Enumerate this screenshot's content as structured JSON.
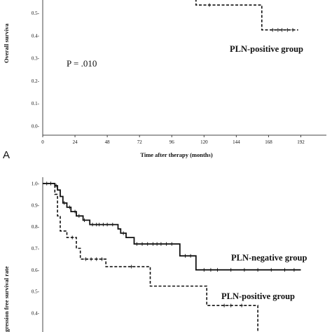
{
  "chart_data": [
    {
      "type": "line",
      "panel_label": "A",
      "ylabel": "Overall surviva",
      "xlabel": "Time after therapy (months)",
      "p_value_text": "P = .010",
      "xlim": [
        0,
        192
      ],
      "ylim": [
        0,
        0.6
      ],
      "x_ticks": [
        0,
        24,
        48,
        72,
        96,
        120,
        144,
        168,
        192
      ],
      "y_ticks": [
        "0.0-",
        "0.1-",
        "0.2-",
        "0.3-",
        "0.4-",
        "0.5-"
      ],
      "y_tick_values": [
        0.0,
        0.1,
        0.2,
        0.3,
        0.4,
        0.5
      ],
      "series": [
        {
          "name": "PLN-positive group",
          "style": "dashed",
          "steps": [
            [
              100,
              0.64
            ],
            [
              114,
              0.64
            ],
            [
              114,
              0.535
            ],
            [
              163,
              0.535
            ],
            [
              163,
              0.425
            ],
            [
              190,
              0.425
            ]
          ],
          "censor": [
            [
              124,
              0.535
            ],
            [
              171,
              0.425
            ],
            [
              175,
              0.425
            ],
            [
              178,
              0.425
            ],
            [
              182,
              0.425
            ],
            [
              186,
              0.425
            ]
          ]
        }
      ]
    },
    {
      "type": "line",
      "ylabel": "gression free survival rate",
      "ylim": [
        0.3,
        1.0
      ],
      "xlim": [
        0,
        192
      ],
      "y_ticks": [
        "1.0-",
        "0.9-",
        "0.8-",
        "0.7-",
        "0.6-",
        "0.5-",
        "0.4-"
      ],
      "y_tick_values": [
        1.0,
        0.9,
        0.8,
        0.7,
        0.6,
        0.5,
        0.4
      ],
      "series": [
        {
          "name": "PLN-negative group",
          "style": "solid",
          "steps": [
            [
              0,
              1.0
            ],
            [
              9,
              1.0
            ],
            [
              9,
              0.99
            ],
            [
              11,
              0.99
            ],
            [
              11,
              0.97
            ],
            [
              13,
              0.97
            ],
            [
              13,
              0.94
            ],
            [
              15,
              0.94
            ],
            [
              15,
              0.91
            ],
            [
              18,
              0.91
            ],
            [
              18,
              0.89
            ],
            [
              21,
              0.89
            ],
            [
              21,
              0.87
            ],
            [
              25,
              0.87
            ],
            [
              25,
              0.85
            ],
            [
              30,
              0.85
            ],
            [
              30,
              0.83
            ],
            [
              35,
              0.83
            ],
            [
              35,
              0.81
            ],
            [
              56,
              0.81
            ],
            [
              56,
              0.79
            ],
            [
              58,
              0.79
            ],
            [
              58,
              0.77
            ],
            [
              62,
              0.77
            ],
            [
              62,
              0.75
            ],
            [
              68,
              0.75
            ],
            [
              68,
              0.72
            ],
            [
              102,
              0.72
            ],
            [
              102,
              0.665
            ],
            [
              114,
              0.665
            ],
            [
              114,
              0.6
            ],
            [
              192,
              0.6
            ]
          ],
          "censor": [
            [
              3,
              1.0
            ],
            [
              6,
              1.0
            ],
            [
              10,
              0.99
            ],
            [
              16,
              0.91
            ],
            [
              20,
              0.89
            ],
            [
              24,
              0.87
            ],
            [
              27,
              0.85
            ],
            [
              31,
              0.83
            ],
            [
              37,
              0.81
            ],
            [
              40,
              0.81
            ],
            [
              42,
              0.81
            ],
            [
              45,
              0.81
            ],
            [
              48,
              0.81
            ],
            [
              52,
              0.81
            ],
            [
              60,
              0.77
            ],
            [
              70,
              0.72
            ],
            [
              74,
              0.72
            ],
            [
              78,
              0.72
            ],
            [
              82,
              0.72
            ],
            [
              85,
              0.72
            ],
            [
              88,
              0.72
            ],
            [
              92,
              0.72
            ],
            [
              96,
              0.72
            ],
            [
              106,
              0.665
            ],
            [
              110,
              0.665
            ],
            [
              120,
              0.6
            ],
            [
              125,
              0.6
            ],
            [
              130,
              0.6
            ],
            [
              140,
              0.6
            ],
            [
              150,
              0.6
            ],
            [
              160,
              0.6
            ],
            [
              170,
              0.6
            ],
            [
              180,
              0.6
            ],
            [
              187,
              0.6
            ]
          ]
        },
        {
          "name": "PLN-positive group",
          "style": "dashed",
          "steps": [
            [
              0,
              1.0
            ],
            [
              9,
              1.0
            ],
            [
              9,
              0.95
            ],
            [
              11,
              0.95
            ],
            [
              11,
              0.85
            ],
            [
              13,
              0.85
            ],
            [
              13,
              0.78
            ],
            [
              18,
              0.78
            ],
            [
              18,
              0.75
            ],
            [
              25,
              0.75
            ],
            [
              25,
              0.7
            ],
            [
              28,
              0.7
            ],
            [
              28,
              0.65
            ],
            [
              47,
              0.65
            ],
            [
              47,
              0.615
            ],
            [
              80,
              0.615
            ],
            [
              80,
              0.525
            ],
            [
              122,
              0.525
            ],
            [
              122,
              0.435
            ],
            [
              160,
              0.435
            ],
            [
              160,
              0.3
            ]
          ],
          "censor": [
            [
              22,
              0.75
            ],
            [
              32,
              0.65
            ],
            [
              36,
              0.65
            ],
            [
              40,
              0.65
            ],
            [
              44,
              0.65
            ],
            [
              66,
              0.615
            ],
            [
              135,
              0.435
            ],
            [
              140,
              0.435
            ],
            [
              148,
              0.435
            ]
          ]
        }
      ]
    }
  ]
}
